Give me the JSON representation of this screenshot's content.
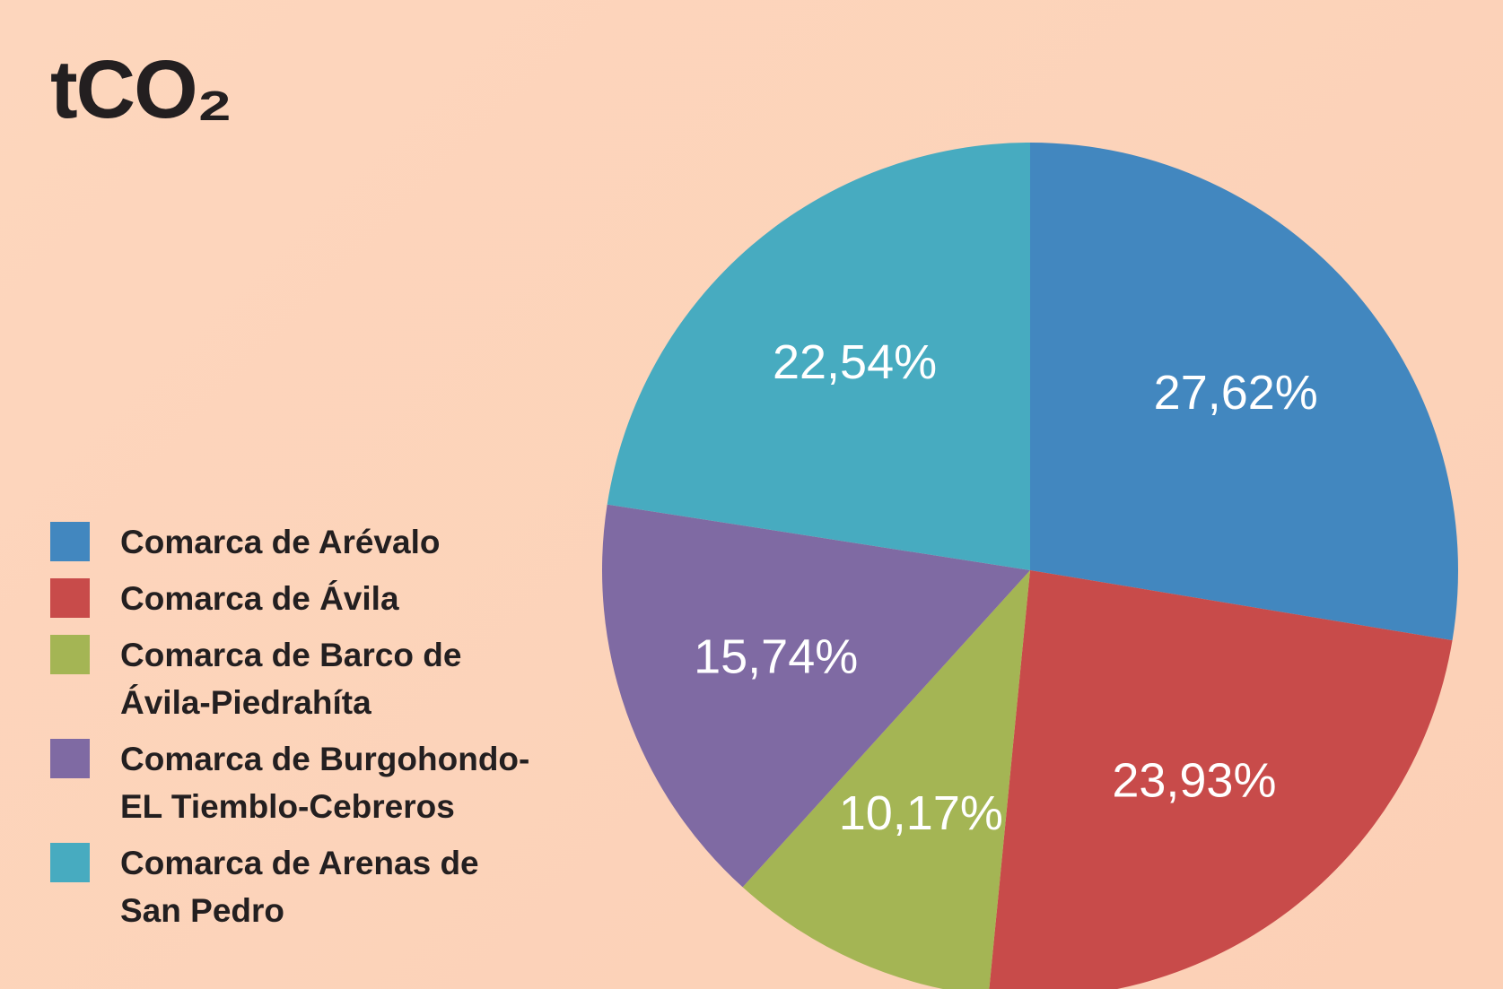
{
  "chart_data": {
    "type": "pie",
    "title": "tCO₂",
    "categories": [
      "Comarca de Arévalo",
      "Comarca de Ávila",
      "Comarca de Barco de Ávila-Piedrahíta",
      "Comarca de Burgohondo-EL Tiemblo-Cebreros",
      "Comarca de Arenas de San Pedro"
    ],
    "values": [
      27.62,
      23.93,
      10.17,
      15.74,
      22.54
    ],
    "value_labels": [
      "27,62%",
      "23,93%",
      "10,17%",
      "15,74%",
      "22,54%"
    ],
    "colors": [
      "#4287bf",
      "#c84b4a",
      "#a4b554",
      "#7f6aa3",
      "#47abc0"
    ]
  }
}
